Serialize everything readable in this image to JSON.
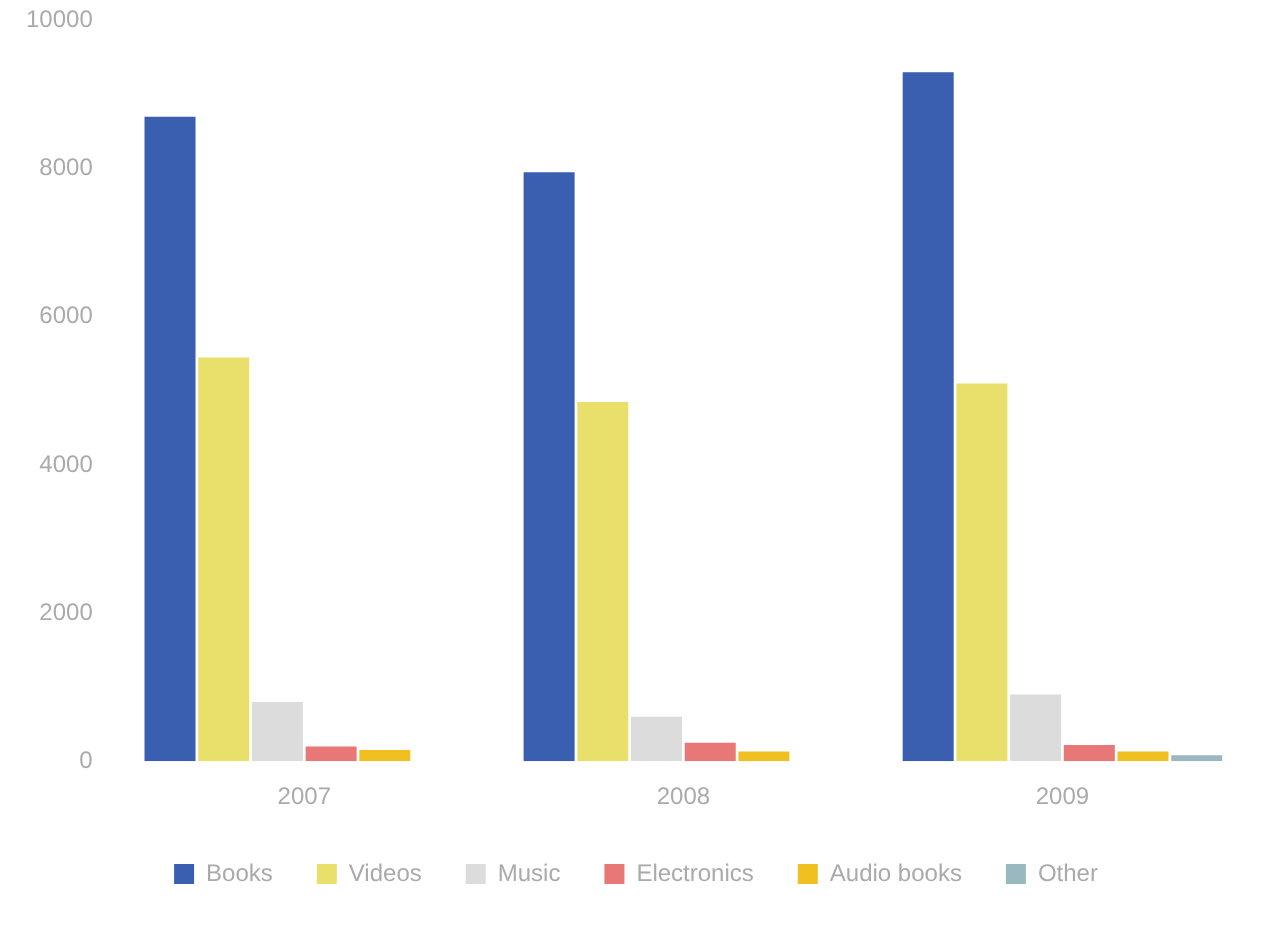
{
  "chart_data": {
    "type": "bar",
    "categories": [
      "2007",
      "2008",
      "2009"
    ],
    "series": [
      {
        "name": "Books",
        "color": "#3a5eb0",
        "values": [
          8700,
          7950,
          9300
        ]
      },
      {
        "name": "Videos",
        "color": "#e8e06a",
        "values": [
          5450,
          4850,
          5100
        ]
      },
      {
        "name": "Music",
        "color": "#dcdcdc",
        "values": [
          800,
          600,
          900
        ]
      },
      {
        "name": "Electronics",
        "color": "#e87878",
        "values": [
          200,
          250,
          220
        ]
      },
      {
        "name": "Audio books",
        "color": "#f0c020",
        "values": [
          150,
          130,
          130
        ]
      },
      {
        "name": "Other",
        "color": "#9ab8c0",
        "values": [
          0,
          0,
          80
        ]
      }
    ],
    "ylim": [
      0,
      10000
    ],
    "yticks": [
      0,
      2000,
      4000,
      6000,
      8000,
      10000
    ],
    "grid": false,
    "legend": "bottom"
  }
}
